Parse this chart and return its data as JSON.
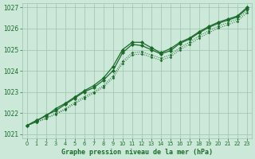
{
  "x": [
    0,
    1,
    2,
    3,
    4,
    5,
    6,
    7,
    8,
    9,
    10,
    11,
    12,
    13,
    14,
    15,
    16,
    17,
    18,
    19,
    20,
    21,
    22,
    23
  ],
  "line_main": [
    1021.4,
    1021.65,
    1021.85,
    1022.2,
    1022.45,
    1022.75,
    1023.05,
    1023.3,
    1023.65,
    1024.2,
    1025.0,
    1025.35,
    1025.35,
    1025.1,
    1024.85,
    1025.05,
    1025.35,
    1025.55,
    1025.85,
    1026.1,
    1026.3,
    1026.45,
    1026.6,
    1027.0
  ],
  "line_secondary": [
    1021.4,
    1021.6,
    1021.9,
    1022.1,
    1022.4,
    1022.7,
    1023.0,
    1023.2,
    1023.55,
    1024.0,
    1024.85,
    1025.25,
    1025.2,
    1025.0,
    1024.8,
    1024.95,
    1025.3,
    1025.5,
    1025.8,
    1026.05,
    1026.25,
    1026.4,
    1026.55,
    1026.95
  ],
  "line_dot1": [
    1021.4,
    1021.57,
    1021.75,
    1021.97,
    1022.2,
    1022.5,
    1022.77,
    1023.0,
    1023.3,
    1023.75,
    1024.45,
    1024.85,
    1024.9,
    1024.75,
    1024.6,
    1024.75,
    1025.1,
    1025.35,
    1025.65,
    1025.9,
    1026.12,
    1026.28,
    1026.45,
    1026.85
  ],
  "line_dot2": [
    1021.4,
    1021.55,
    1021.73,
    1021.93,
    1022.15,
    1022.43,
    1022.7,
    1022.93,
    1023.22,
    1023.65,
    1024.35,
    1024.75,
    1024.8,
    1024.65,
    1024.5,
    1024.65,
    1025.0,
    1025.25,
    1025.55,
    1025.8,
    1026.02,
    1026.18,
    1026.35,
    1026.75
  ],
  "background": "#cce8d8",
  "line_color": "#1a6b2a",
  "grid_color": "#9ec4b0",
  "xlabel": "Graphe pression niveau de la mer (hPa)",
  "xlabel_color": "#1a6b2a",
  "ylim": [
    1020.8,
    1027.2
  ],
  "yticks": [
    1021,
    1022,
    1023,
    1024,
    1025,
    1026,
    1027
  ],
  "xticks": [
    0,
    1,
    2,
    3,
    4,
    5,
    6,
    7,
    8,
    9,
    10,
    11,
    12,
    13,
    14,
    15,
    16,
    17,
    18,
    19,
    20,
    21,
    22,
    23
  ]
}
